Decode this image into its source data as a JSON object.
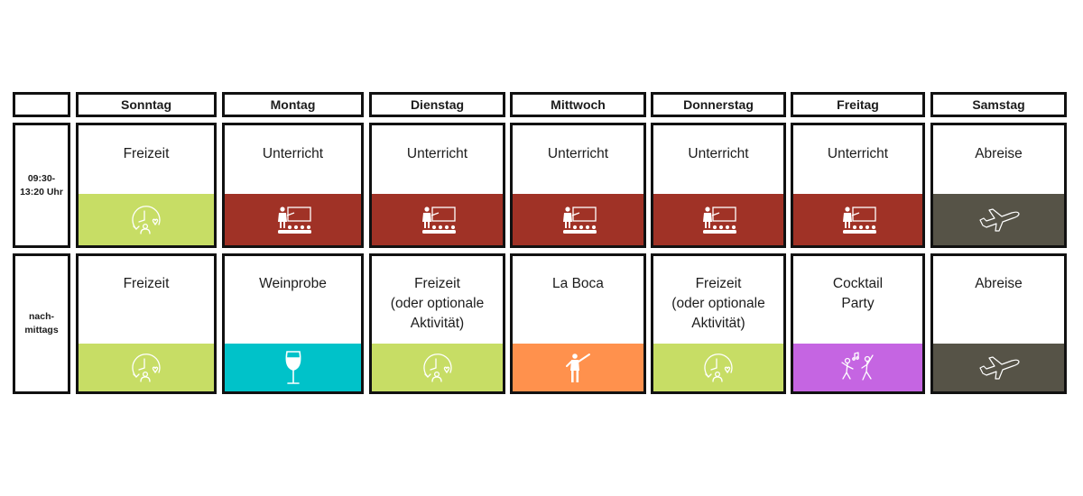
{
  "days": [
    "Sonntag",
    "Montag",
    "Dienstag",
    "Mittwoch",
    "Donnerstag",
    "Freitag",
    "Samstag"
  ],
  "rows": [
    {
      "label": "09:30-\n13:20 Uhr",
      "cells": [
        {
          "title": "Freizeit",
          "icon": "leisure-icon",
          "color": "#c7dd65"
        },
        {
          "title": "Unterricht",
          "icon": "classroom-icon",
          "color": "#a03226"
        },
        {
          "title": "Unterricht",
          "icon": "classroom-icon",
          "color": "#a03226"
        },
        {
          "title": "Unterricht",
          "icon": "classroom-icon",
          "color": "#a03226"
        },
        {
          "title": "Unterricht",
          "icon": "classroom-icon",
          "color": "#a03226"
        },
        {
          "title": "Unterricht",
          "icon": "classroom-icon",
          "color": "#a03226"
        },
        {
          "title": "Abreise",
          "icon": "airplane-icon",
          "color": "#565347"
        }
      ]
    },
    {
      "label": "nach-\nmittags",
      "cells": [
        {
          "title": "Freizeit",
          "icon": "leisure-icon",
          "color": "#c7dd65"
        },
        {
          "title": "Weinprobe",
          "icon": "wine-glass-icon",
          "color": "#00c2c9"
        },
        {
          "title": "Freizeit\n(oder optionale\nAktivität)",
          "icon": "leisure-icon",
          "color": "#c7dd65"
        },
        {
          "title": "La Boca",
          "icon": "tango-dancer-icon",
          "color": "#ff914d"
        },
        {
          "title": "Freizeit\n(oder optionale\nAktivität)",
          "icon": "leisure-icon",
          "color": "#c7dd65"
        },
        {
          "title": "Cocktail\nParty",
          "icon": "party-dancers-icon",
          "color": "#c565e2"
        },
        {
          "title": "Abreise",
          "icon": "airplane-icon",
          "color": "#565347"
        }
      ]
    }
  ]
}
